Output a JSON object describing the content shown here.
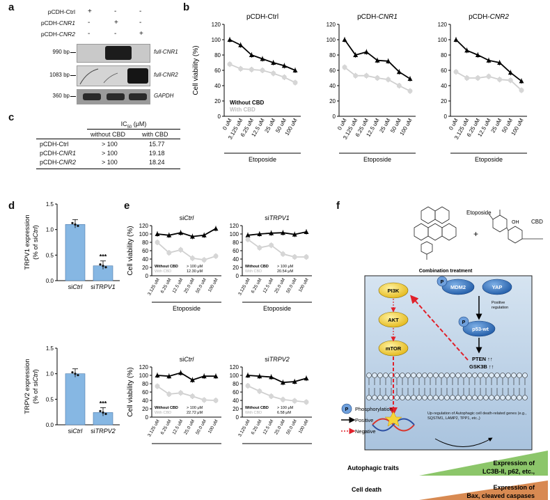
{
  "panels": {
    "a": "a",
    "b": "b",
    "c": "c",
    "d": "d",
    "e": "e",
    "f": "f"
  },
  "panel_a": {
    "rows": [
      {
        "pre": "pCDH-",
        "name": "Ctrl",
        "italic": false,
        "signs": [
          "+",
          "-",
          "-"
        ]
      },
      {
        "pre": "pCDH-",
        "name": "CNR1",
        "italic": true,
        "signs": [
          "-",
          "+",
          "-"
        ]
      },
      {
        "pre": "pCDH-",
        "name": "CNR2",
        "italic": true,
        "signs": [
          "-",
          "-",
          "+"
        ]
      }
    ],
    "blots": [
      {
        "size": "990 bp",
        "gene": "full-CNR1"
      },
      {
        "size": "1083 bp",
        "gene": "full-CNR2"
      },
      {
        "size": "360 bp",
        "gene": "GAPDH"
      }
    ]
  },
  "panel_b": {
    "ylabel": "Cell viability (%)",
    "xgroup": "Etoposide",
    "legend_without": "Without CBD",
    "legend_with": "With CBD",
    "titles": [
      {
        "pre": "pCDH-",
        "name": "Ctrl",
        "italic": false
      },
      {
        "pre": "pCDH-",
        "name": "CNR1",
        "italic": true
      },
      {
        "pre": "pCDH-",
        "name": "CNR2",
        "italic": true
      }
    ],
    "xticks": [
      "0 uM",
      "3.125 uM",
      "6.25 uM",
      "12.5 uM",
      "25 uM",
      "50 uM",
      "100 uM"
    ],
    "yticks": [
      "0",
      "20",
      "40",
      "60",
      "80",
      "100",
      "120"
    ]
  },
  "panel_c": {
    "header": "IC",
    "header_sub": "50",
    "header_unit": " (μM)",
    "col1": "without CBD",
    "col2": "with CBD",
    "rows": [
      {
        "pre": "pCDH-",
        "name": "Ctrl",
        "italic": false,
        "without": "> 100",
        "with": "15.77"
      },
      {
        "pre": "pCDH-",
        "name": "CNR1",
        "italic": true,
        "without": "> 100",
        "with": "19.18"
      },
      {
        "pre": "pCDH-",
        "name": "CNR2",
        "italic": true,
        "without": "> 100",
        "with": "18.24"
      }
    ]
  },
  "panel_d": {
    "top": {
      "ylabel1": "TRPV1 expression",
      "ylabel2": "(% of si",
      "ylabel3": "Ctrl",
      ")": ")",
      "cats": [
        {
          "pre": "si",
          "name": "Ctrl"
        },
        {
          "pre": "si",
          "name": "TRPV1"
        }
      ],
      "sig": "***",
      "yticks": [
        "0.0",
        "0.5",
        "1.0",
        "1.5"
      ]
    },
    "bottom": {
      "ylabel1": "TRPV2 expression",
      "ylabel2": "(% of si",
      "ylabel3": "Ctrl",
      ")": ")",
      "cats": [
        {
          "pre": "si",
          "name": "Ctrl"
        },
        {
          "pre": "si",
          "name": "TRPV2"
        }
      ],
      "sig": "***",
      "yticks": [
        "0.0",
        "0.5",
        "1.0",
        "1.5"
      ]
    },
    "close_paren": ")"
  },
  "panel_e": {
    "ylabel": "Cell viability (%)",
    "xgroup": "Etoposide",
    "xticks": [
      "3.125 uM",
      "6.25 uM",
      "12.5 uM",
      "25.0 uM",
      "50.0 uM",
      "100 uM"
    ],
    "yticks": [
      "0",
      "20",
      "40",
      "60",
      "80",
      "100",
      "120"
    ],
    "legend_without": "Without CBD",
    "legend_with": "With CBD",
    "charts": [
      {
        "pre": "si",
        "name": "Ctrl",
        "ic_without": "> 100 μM",
        "ic_with": "12.30 μM"
      },
      {
        "pre": "si",
        "name": "TRPV1",
        "ic_without": "> 100 μM",
        "ic_with": "20.54 μM"
      },
      {
        "pre": "si",
        "name": "Ctrl",
        "ic_without": "> 100 μM",
        "ic_with": "22.72 μM"
      },
      {
        "pre": "si",
        "name": "TRPV2",
        "ic_without": "> 100 μM",
        "ic_with": "6.58 μM"
      }
    ]
  },
  "panel_f": {
    "etoposide": "Etoposide",
    "plus": "+",
    "cbd": "CBD",
    "combination": "Combination treatment",
    "nodes": {
      "pi3k": "PI3K",
      "akt": "AKT",
      "mtor": "mTOR",
      "mdm2": "MDM2",
      "yap": "YAP",
      "p53": "p53-wt",
      "p": "P"
    },
    "positive_regulation": "Positive\nregulation",
    "pten": "PTEN ↑↑",
    "gsk3b": "GSK3B ↑↑",
    "upreg": "Up-regulation of Autophagic cell death-related genes (e.g., SQSTM1, LAMP2, TPP1, etc.,)",
    "legend": {
      "phos": "Phosphorylation",
      "pos": "Positive",
      "neg": "Negative"
    },
    "autophagic_traits": "Autophagic traits",
    "autophagic_expr1": "Expression of",
    "autophagic_expr2": "LC3B-II, p62, etc.,",
    "cell_death": "Cell death",
    "death_expr1": "Expression of",
    "death_expr2": "Bax, cleaved caspases",
    "colors": {
      "box": "#bcd3e9",
      "yellow": "#f2d23a",
      "blue": "#2e6db3",
      "green": "#8cc66a",
      "orange": "#d88a52"
    }
  },
  "chart_data": [
    {
      "type": "line",
      "title": "pCDH-Ctrl",
      "xlabel": "Etoposide",
      "ylabel": "Cell viability (%)",
      "ylim": [
        0,
        120
      ],
      "categories": [
        "0 uM",
        "3.125 uM",
        "6.25 uM",
        "12.5 uM",
        "25 uM",
        "50 uM",
        "100 uM"
      ],
      "series": [
        {
          "name": "Without CBD",
          "values": [
            100,
            93,
            80,
            75,
            70,
            66,
            60
          ]
        },
        {
          "name": "With CBD",
          "values": [
            68,
            62,
            61,
            60,
            56,
            51,
            44
          ]
        }
      ]
    },
    {
      "type": "line",
      "title": "pCDH-CNR1",
      "xlabel": "Etoposide",
      "ylabel": "Cell viability (%)",
      "ylim": [
        0,
        120
      ],
      "categories": [
        "0 uM",
        "3.125 uM",
        "6.25 uM",
        "12.5 uM",
        "25 uM",
        "50 uM",
        "100 uM"
      ],
      "series": [
        {
          "name": "Without CBD",
          "values": [
            100,
            80,
            84,
            73,
            72,
            58,
            49
          ]
        },
        {
          "name": "With CBD",
          "values": [
            64,
            53,
            53,
            50,
            48,
            40,
            33
          ]
        }
      ]
    },
    {
      "type": "line",
      "title": "pCDH-CNR2",
      "xlabel": "Etoposide",
      "ylabel": "Cell viability (%)",
      "ylim": [
        0,
        120
      ],
      "categories": [
        "0 uM",
        "3.125 uM",
        "6.25 uM",
        "12.5 uM",
        "25 uM",
        "50 uM",
        "100 uM"
      ],
      "series": [
        {
          "name": "Without CBD",
          "values": [
            100,
            86,
            80,
            73,
            70,
            57,
            46
          ]
        },
        {
          "name": "With CBD",
          "values": [
            58,
            50,
            50,
            52,
            48,
            47,
            34
          ]
        }
      ]
    },
    {
      "type": "bar",
      "title": "TRPV1 expression",
      "ylabel": "TRPV1 expression (% of siCtrl)",
      "ylim": [
        0,
        1.5
      ],
      "categories": [
        "siCtrl",
        "siTRPV1"
      ],
      "values": [
        1.1,
        0.29
      ]
    },
    {
      "type": "bar",
      "title": "TRPV2 expression",
      "ylabel": "TRPV2 expression (% of siCtrl)",
      "ylim": [
        0,
        1.5
      ],
      "categories": [
        "siCtrl",
        "siTRPV2"
      ],
      "values": [
        1.0,
        0.24
      ]
    },
    {
      "type": "line",
      "title": "siCtrl",
      "xlabel": "Etoposide",
      "ylabel": "Cell viability (%)",
      "ylim": [
        0,
        120
      ],
      "categories": [
        "3.125 uM",
        "6.25 uM",
        "12.5 uM",
        "25.0 uM",
        "50.0 uM",
        "100 uM"
      ],
      "series": [
        {
          "name": "Without CBD",
          "values": [
            100,
            97,
            103,
            94,
            97,
            113
          ]
        },
        {
          "name": "With CBD",
          "values": [
            80,
            55,
            62,
            42,
            38,
            47
          ]
        }
      ]
    },
    {
      "type": "line",
      "title": "siTRPV1",
      "xlabel": "Etoposide",
      "ylabel": "Cell viability (%)",
      "ylim": [
        0,
        120
      ],
      "categories": [
        "3.125 uM",
        "6.25 uM",
        "12.5 uM",
        "25.0 uM",
        "50.0 uM",
        "100 uM"
      ],
      "series": [
        {
          "name": "Without CBD",
          "values": [
            97,
            100,
            102,
            103,
            99,
            105
          ]
        },
        {
          "name": "With CBD",
          "values": [
            87,
            67,
            73,
            52,
            45,
            45
          ]
        }
      ]
    },
    {
      "type": "line",
      "title": "siCtrl",
      "xlabel": "Etoposide",
      "ylabel": "Cell viability (%)",
      "ylim": [
        0,
        120
      ],
      "categories": [
        "3.125 uM",
        "6.25 uM",
        "12.5 uM",
        "25.0 uM",
        "50.0 uM",
        "100 uM"
      ],
      "series": [
        {
          "name": "Without CBD",
          "values": [
            100,
            98,
            106,
            89,
            98,
            98
          ]
        },
        {
          "name": "With CBD",
          "values": [
            74,
            55,
            58,
            50,
            41,
            40
          ]
        }
      ]
    },
    {
      "type": "line",
      "title": "siTRPV2",
      "xlabel": "Etoposide",
      "ylabel": "Cell viability (%)",
      "ylim": [
        0,
        120
      ],
      "categories": [
        "3.125 uM",
        "6.25 uM",
        "12.5 uM",
        "25.0 uM",
        "50.0 uM",
        "100 uM"
      ],
      "series": [
        {
          "name": "Without CBD",
          "values": [
            100,
            98,
            96,
            83,
            85,
            93
          ]
        },
        {
          "name": "With CBD",
          "values": [
            75,
            62,
            50,
            42,
            39,
            36
          ]
        }
      ]
    }
  ]
}
